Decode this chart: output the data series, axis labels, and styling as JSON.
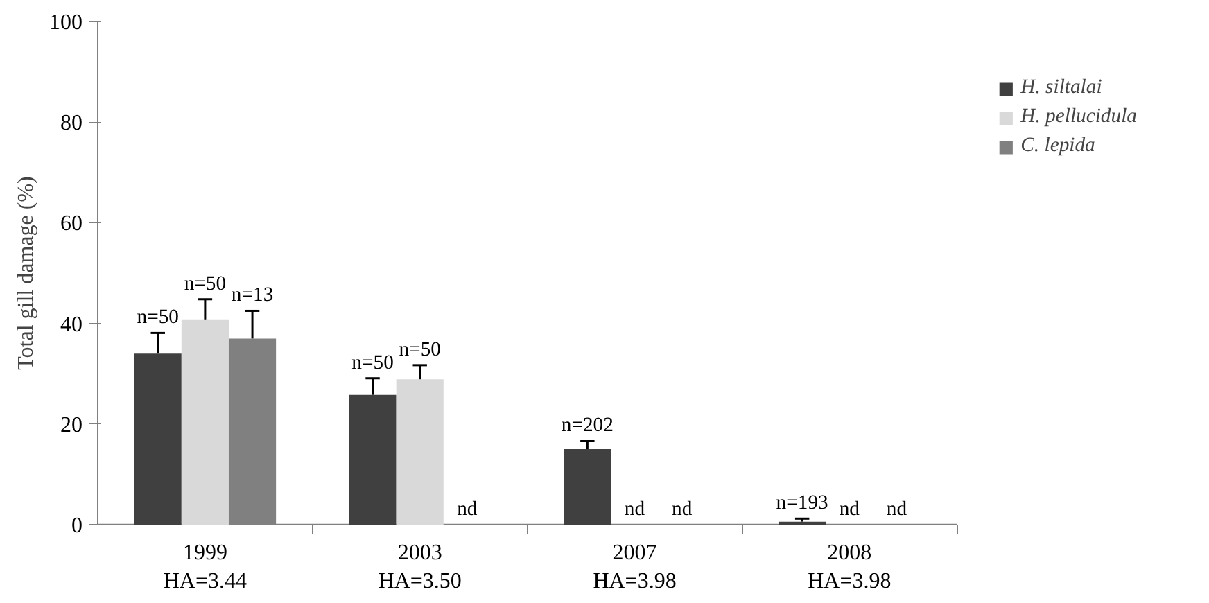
{
  "chart_data": {
    "type": "bar",
    "ylabel": "Total gill damage (%)",
    "categories": [
      "1999\nHA=3.44",
      "2003\nHA=3.50",
      "2007\nHA=3.98",
      "2008\nHA=3.98"
    ],
    "ylim": [
      0,
      100
    ],
    "yticks": [
      0,
      20,
      40,
      60,
      80,
      100
    ],
    "grid": false,
    "legend": "top right",
    "series": [
      {
        "name": "H. siltalai",
        "color": "#404040",
        "values": [
          34.0,
          25.8,
          15.0,
          0.6
        ],
        "errors": [
          [
            34.0,
            38.1
          ],
          [
            25.8,
            29.1
          ],
          [
            15.0,
            16.6
          ],
          [
            0.6,
            1.2
          ]
        ]
      },
      {
        "name": "H. pellucidula",
        "color": "#d9d9d9",
        "values": [
          40.8,
          28.9,
          null,
          null
        ],
        "errors": [
          [
            40.8,
            44.8
          ],
          [
            28.9,
            31.7
          ],
          null,
          null
        ]
      },
      {
        "name": "C. lepida",
        "color": "#808080",
        "values": [
          37.0,
          null,
          null,
          null
        ],
        "errors": [
          [
            37.0,
            42.5
          ],
          null,
          null,
          null
        ]
      }
    ],
    "annotations": [
      "n=50",
      "n=50",
      "n=13",
      "n=50",
      "n=50",
      "nd",
      "n=202",
      "nd",
      "nd",
      "n=193",
      "nd",
      "nd"
    ]
  }
}
